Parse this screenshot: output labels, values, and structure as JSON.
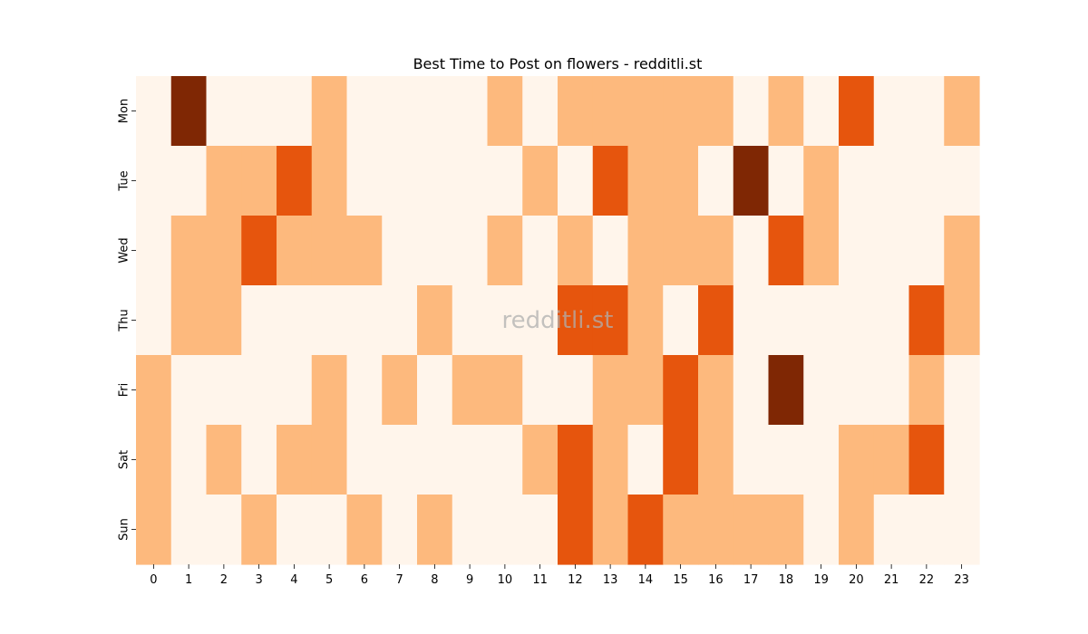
{
  "chart_data": {
    "type": "heatmap",
    "title": "Best Time to Post on flowers - redditli.st",
    "watermark": "redditli.st",
    "xlabel": "",
    "ylabel": "",
    "x": [
      "0",
      "1",
      "2",
      "3",
      "4",
      "5",
      "6",
      "7",
      "8",
      "9",
      "10",
      "11",
      "12",
      "13",
      "14",
      "15",
      "16",
      "17",
      "18",
      "19",
      "20",
      "21",
      "22",
      "23"
    ],
    "y": [
      "Mon",
      "Tue",
      "Wed",
      "Thu",
      "Fri",
      "Sat",
      "Sun"
    ],
    "levels": 4,
    "colormap": [
      "#fff5eb",
      "#fdb97d",
      "#e6550d",
      "#7f2704"
    ],
    "grid": false,
    "legend": "none",
    "values": [
      [
        0,
        3,
        0,
        0,
        0,
        1,
        0,
        0,
        0,
        0,
        1,
        0,
        1,
        1,
        1,
        1,
        1,
        0,
        1,
        0,
        2,
        0,
        0,
        1
      ],
      [
        0,
        0,
        1,
        1,
        2,
        1,
        0,
        0,
        0,
        0,
        0,
        1,
        0,
        2,
        1,
        1,
        0,
        3,
        0,
        1,
        0,
        0,
        0,
        0
      ],
      [
        0,
        1,
        1,
        2,
        1,
        1,
        1,
        0,
        0,
        0,
        1,
        0,
        1,
        0,
        1,
        1,
        1,
        0,
        2,
        1,
        0,
        0,
        0,
        1
      ],
      [
        0,
        1,
        1,
        0,
        0,
        0,
        0,
        0,
        1,
        0,
        0,
        0,
        2,
        2,
        1,
        0,
        2,
        0,
        0,
        0,
        0,
        0,
        2,
        1
      ],
      [
        1,
        0,
        0,
        0,
        0,
        1,
        0,
        1,
        0,
        1,
        1,
        0,
        0,
        1,
        1,
        2,
        1,
        0,
        3,
        0,
        0,
        0,
        1,
        0
      ],
      [
        1,
        0,
        1,
        0,
        1,
        1,
        0,
        0,
        0,
        0,
        0,
        1,
        2,
        1,
        0,
        2,
        1,
        0,
        0,
        0,
        1,
        1,
        2,
        0
      ],
      [
        1,
        0,
        0,
        1,
        0,
        0,
        1,
        0,
        1,
        0,
        0,
        0,
        2,
        1,
        2,
        1,
        1,
        1,
        1,
        0,
        1,
        0,
        0,
        0
      ]
    ]
  }
}
